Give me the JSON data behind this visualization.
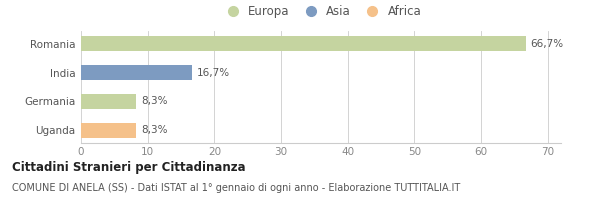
{
  "categories": [
    "Uganda",
    "Germania",
    "India",
    "Romania"
  ],
  "values": [
    8.3,
    8.3,
    16.7,
    66.7
  ],
  "labels": [
    "8,3%",
    "8,3%",
    "16,7%",
    "66,7%"
  ],
  "colors": [
    "#f5c18a",
    "#c5d4a0",
    "#7d9bc1",
    "#c5d4a0"
  ],
  "legend": [
    {
      "label": "Europa",
      "color": "#c5d4a0"
    },
    {
      "label": "Asia",
      "color": "#7d9bc1"
    },
    {
      "label": "Africa",
      "color": "#f5c18a"
    }
  ],
  "xlim": [
    0,
    72
  ],
  "xticks": [
    0,
    10,
    20,
    30,
    40,
    50,
    60,
    70
  ],
  "title_bold": "Cittadini Stranieri per Cittadinanza",
  "subtitle": "COMUNE DI ANELA (SS) - Dati ISTAT al 1° gennaio di ogni anno - Elaborazione TUTTITALIA.IT",
  "title_fontsize": 8.5,
  "subtitle_fontsize": 7.0,
  "label_fontsize": 7.5,
  "tick_fontsize": 7.5,
  "legend_fontsize": 8.5,
  "bar_height": 0.52,
  "background_color": "#ffffff",
  "grid_color": "#cccccc"
}
